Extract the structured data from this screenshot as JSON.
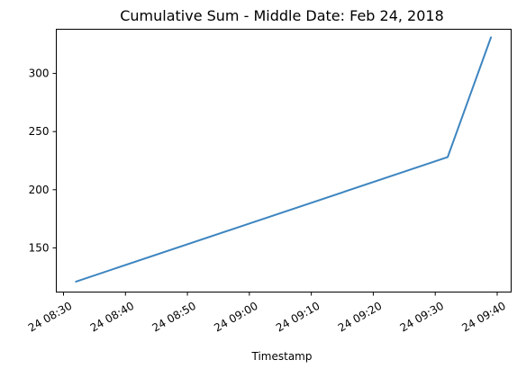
{
  "chart_data": {
    "type": "line",
    "title": "Cumulative Sum - Middle Date: Feb 24, 2018",
    "xlabel": "Timestamp",
    "ylabel": "",
    "grid": false,
    "legend": "none",
    "line_color": "#3d85c0",
    "x_ticks": [
      "2018-02-24T08:30",
      "2018-02-24T08:40",
      "2018-02-24T08:50",
      "2018-02-24T09:00",
      "2018-02-24T09:10",
      "2018-02-24T09:20",
      "2018-02-24T09:30",
      "2018-02-24T09:40"
    ],
    "x_tick_labels": [
      "24 08:30",
      "24 08:40",
      "24 08:50",
      "24 09:00",
      "24 09:10",
      "24 09:20",
      "24 09:30",
      "24 09:40"
    ],
    "y_ticks": [
      150,
      200,
      250,
      300
    ],
    "xlim": [
      "2018-02-24T08:30",
      "2018-02-24T09:40"
    ],
    "ylim": [
      112,
      338
    ],
    "series": [
      {
        "x": [
          "2018-02-24T08:32",
          "2018-02-24T09:32",
          "2018-02-24T09:39"
        ],
        "y": [
          121,
          228,
          331
        ]
      }
    ]
  }
}
